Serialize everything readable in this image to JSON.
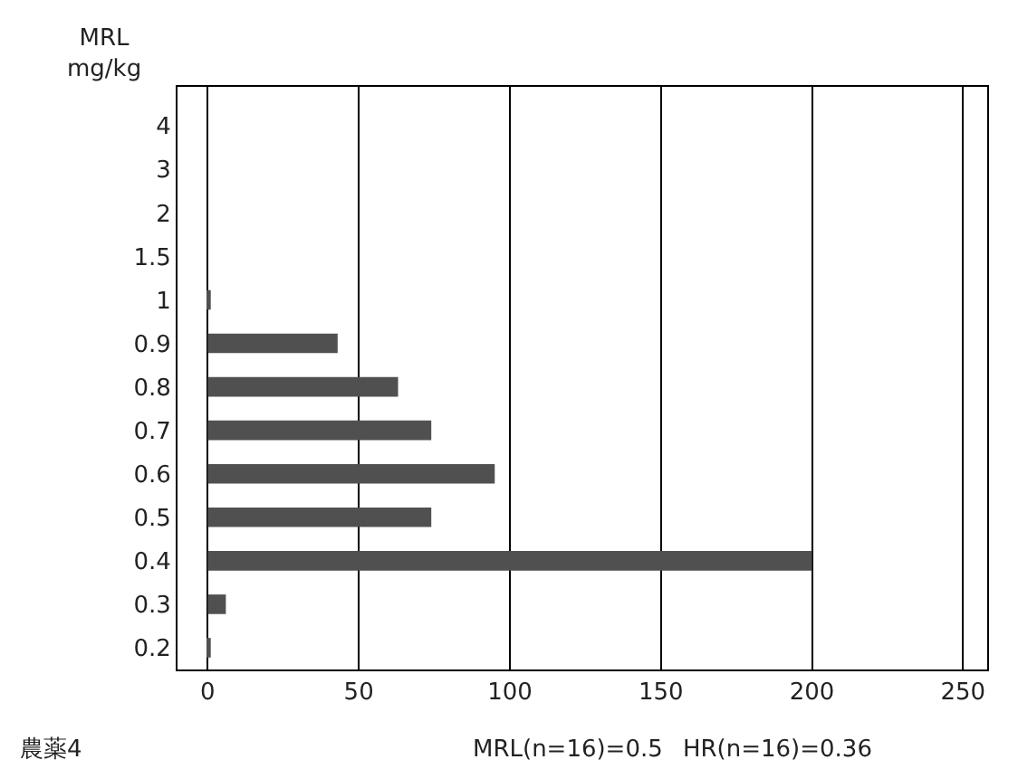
{
  "chart_data": {
    "type": "bar",
    "orientation": "horizontal",
    "ylabel": "MRL\nmg/kg",
    "categories": [
      "4",
      "3",
      "2",
      "1.5",
      "1",
      "0.9",
      "0.8",
      "0.7",
      "0.6",
      "0.5",
      "0.4",
      "0.3",
      "0.2"
    ],
    "values": [
      0,
      0,
      0,
      0,
      1,
      43,
      63,
      74,
      95,
      74,
      200,
      6,
      1
    ],
    "color": "#505050",
    "xlim": [
      -10,
      258
    ],
    "xticks": [
      0,
      50,
      100,
      150,
      200,
      250
    ],
    "grid": "x",
    "annotations": [
      "農薬4",
      "MRL(n=16)=0.5",
      "HR(n=16)=0.36"
    ]
  }
}
